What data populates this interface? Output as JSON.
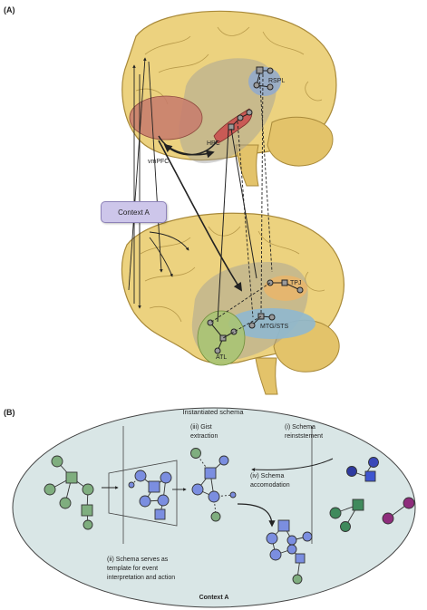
{
  "panel_a": {
    "label": "(A)",
    "regions": {
      "rspl": "RSPL",
      "hpc": "HPC",
      "vmpfc": "vmPFC",
      "tpj": "TPJ",
      "mtg_sts": "MTG/STS",
      "atl": "ATL"
    },
    "context_box": "Context A"
  },
  "panel_b": {
    "label": "(B)",
    "title": "Instantiated schema",
    "steps": {
      "gist_1": "(iii) Gist",
      "gist_2": "extraction",
      "reinst_1": "(i) Schema",
      "reinst_2": "reinststement",
      "accom_1": "(iv) Schema",
      "accom_2": "accomodation",
      "template_1": "(ii) Schema serves as",
      "template_2": "template for event",
      "template_3": "interpretation and action"
    },
    "context": "Context A"
  },
  "colors": {
    "brain": "#ecd27f",
    "brain_stroke": "#a98a3a",
    "vmpfc": "#c77a6c",
    "hpc": "#c95a55",
    "rspl": "#8fa9cf",
    "tpj": "#e8b66c",
    "mtg": "#8fb8cf",
    "atl": "#a8c474",
    "ellipse": "#d9e6e6",
    "green_node": "#7fae7f",
    "blue_node": "#7b8ee0",
    "purple_node": "#8e2d7c"
  }
}
